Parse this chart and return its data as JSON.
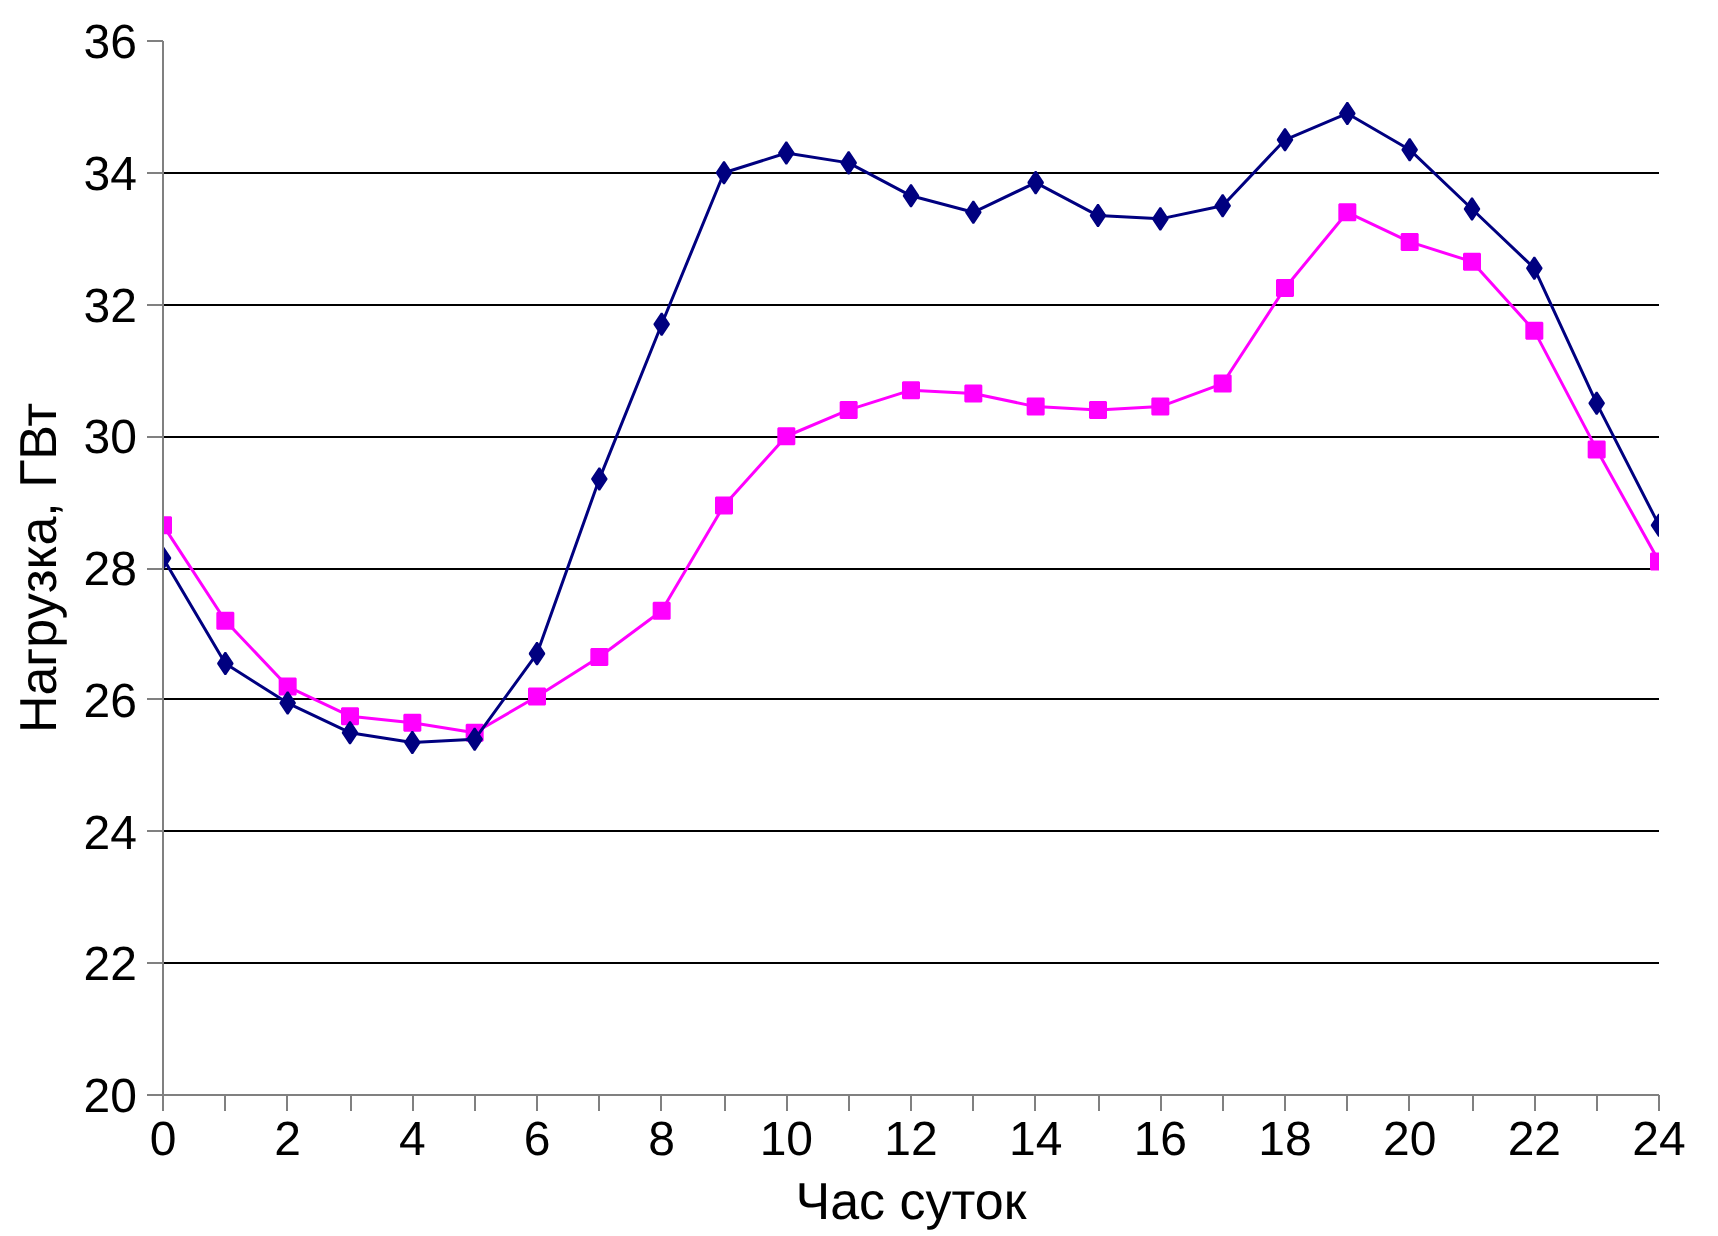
{
  "chart_data": {
    "type": "line",
    "xlabel": "Час суток",
    "ylabel": "Нагрузка, ГВт",
    "x": [
      0,
      1,
      2,
      3,
      4,
      5,
      6,
      7,
      8,
      9,
      10,
      11,
      12,
      13,
      14,
      15,
      16,
      17,
      18,
      19,
      20,
      21,
      22,
      23,
      24
    ],
    "series": [
      {
        "color": "#000080",
        "marker": "diamond",
        "values": [
          28.15,
          26.55,
          25.95,
          25.5,
          25.35,
          25.4,
          26.7,
          29.35,
          31.7,
          34.0,
          34.3,
          34.15,
          33.65,
          33.4,
          33.85,
          33.35,
          33.3,
          33.5,
          34.5,
          34.9,
          34.35,
          33.45,
          32.55,
          30.5,
          28.65
        ]
      },
      {
        "color": "#ff00ff",
        "marker": "square",
        "values": [
          28.65,
          27.2,
          26.2,
          25.75,
          25.65,
          25.5,
          26.05,
          26.65,
          27.35,
          28.95,
          30.0,
          30.4,
          30.7,
          30.65,
          30.45,
          30.4,
          30.45,
          30.8,
          32.25,
          33.4,
          32.95,
          32.65,
          31.6,
          29.8,
          28.1
        ]
      }
    ],
    "xlim": [
      0,
      24
    ],
    "ylim": [
      20,
      36
    ],
    "xticks": [
      0,
      {
        "value": 1,
        "label": null
      },
      2,
      {
        "value": 3,
        "label": null
      },
      4,
      {
        "value": 5,
        "label": null
      },
      6,
      {
        "value": 7,
        "label": null
      },
      8,
      {
        "value": 9,
        "label": null
      },
      10,
      {
        "value": 11,
        "label": null
      },
      12,
      {
        "value": 13,
        "label": null
      },
      14,
      {
        "value": 15,
        "label": null
      },
      16,
      {
        "value": 17,
        "label": null
      },
      18,
      {
        "value": 19,
        "label": null
      },
      20,
      {
        "value": 21,
        "label": null
      },
      22,
      {
        "value": 23,
        "label": null
      },
      24
    ],
    "yticks": [
      20,
      22,
      24,
      26,
      28,
      30,
      32,
      34,
      36
    ],
    "grid": "y",
    "line_style": "solid"
  }
}
